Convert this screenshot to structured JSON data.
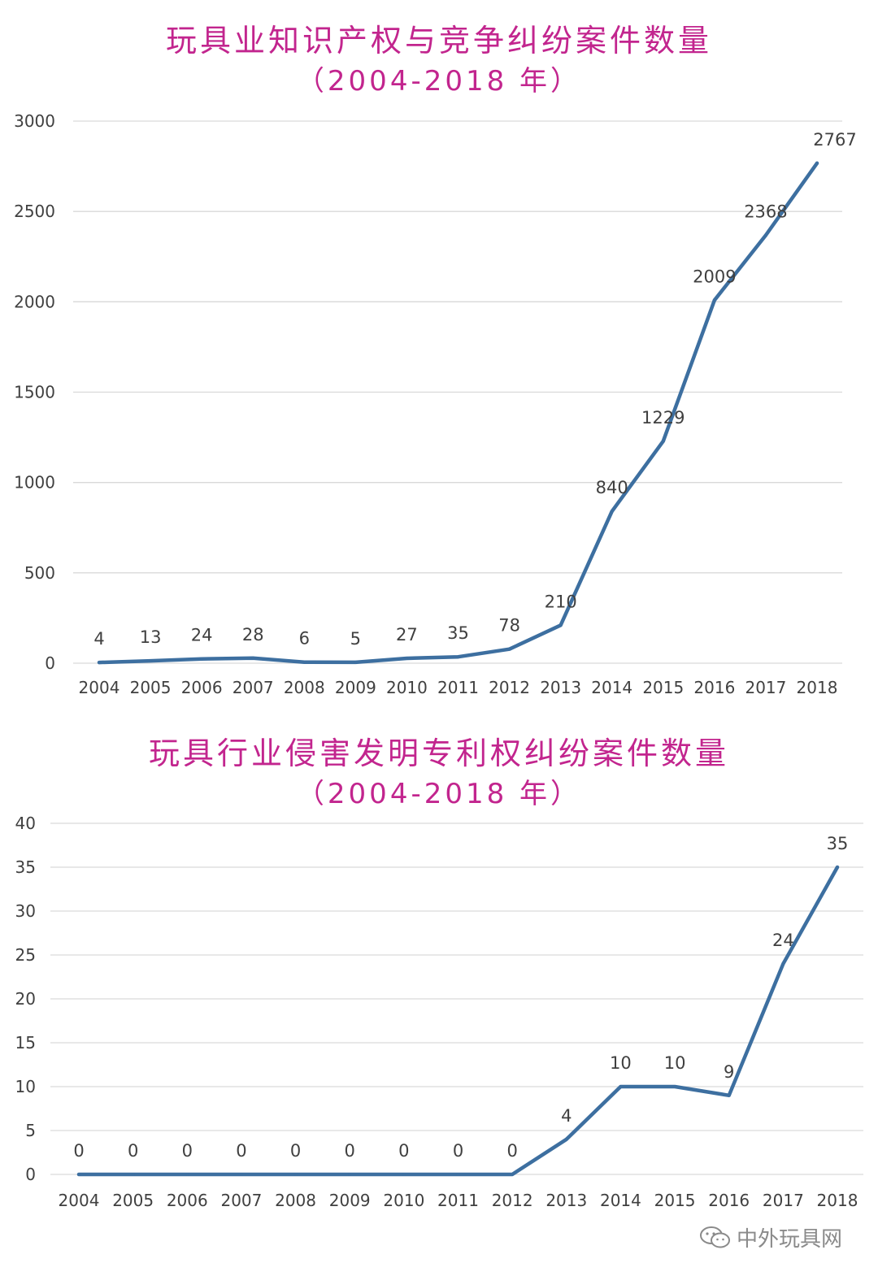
{
  "chart_data": [
    {
      "type": "line",
      "title": "玩具业知识产权与竞争纠纷案件数量",
      "subtitle": "（2004-2018 年）",
      "categories": [
        "2004",
        "2005",
        "2006",
        "2007",
        "2008",
        "2009",
        "2010",
        "2011",
        "2012",
        "2013",
        "2014",
        "2015",
        "2016",
        "2017",
        "2018"
      ],
      "values": [
        4,
        13,
        24,
        28,
        6,
        5,
        27,
        35,
        78,
        210,
        840,
        1229,
        2009,
        2368,
        2767
      ],
      "data_labels": [
        "4",
        "13",
        "24",
        "28",
        "6",
        "5",
        "27",
        "35",
        "78",
        "210",
        "840",
        "1229",
        "2009",
        "2368",
        "2767"
      ],
      "yticks": [
        0,
        500,
        1000,
        1500,
        2000,
        2500,
        3000
      ],
      "ylim": [
        0,
        3000
      ],
      "grid": true,
      "legend": "none",
      "line_color": "#3d6fa0"
    },
    {
      "type": "line",
      "title": "玩具行业侵害发明专利权纠纷案件数量",
      "subtitle": "（2004-2018 年）",
      "categories": [
        "2004",
        "2005",
        "2006",
        "2007",
        "2008",
        "2009",
        "2010",
        "2011",
        "2012",
        "2013",
        "2014",
        "2015",
        "2016",
        "2017",
        "2018"
      ],
      "values": [
        0,
        0,
        0,
        0,
        0,
        0,
        0,
        0,
        0,
        4,
        10,
        10,
        9,
        24,
        35
      ],
      "data_labels": [
        "0",
        "0",
        "0",
        "0",
        "0",
        "0",
        "0",
        "0",
        "0",
        "4",
        "10",
        "10",
        "9",
        "24",
        "35"
      ],
      "yticks": [
        0,
        5,
        10,
        15,
        20,
        25,
        30,
        35,
        40
      ],
      "ylim": [
        0,
        40
      ],
      "grid": true,
      "legend": "none",
      "line_color": "#3d6fa0"
    }
  ],
  "watermark": {
    "text": "中外玩具网",
    "icon": "wechat-icon"
  },
  "colors": {
    "title": "#c2258e",
    "line": "#3d6fa0",
    "grid": "#d9d9d9",
    "text": "#404040"
  }
}
